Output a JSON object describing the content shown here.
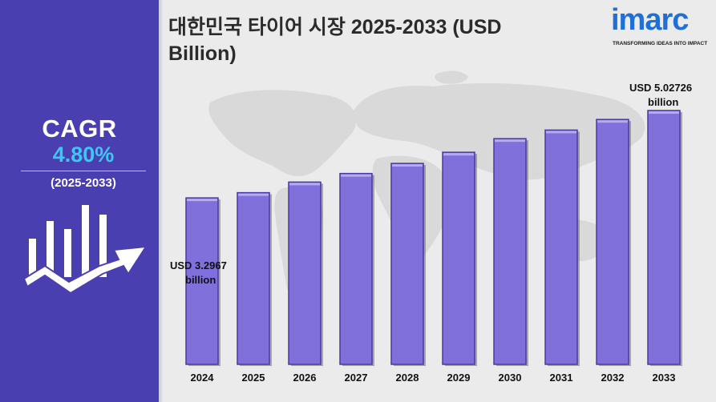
{
  "title": "대한민국 타이어 시장 2025-2033 (USD Billion)",
  "brand": {
    "name": "imarc",
    "tagline": "TRANSFORMING IDEAS INTO IMPACT",
    "color": "#1f6fd6"
  },
  "cagr": {
    "label": "CAGR",
    "value": "4.80%",
    "period": "(2025-2033)"
  },
  "colors": {
    "sidebar": "#4a3fb0",
    "bar_fill": "#7f70dc",
    "bar_edge": "#4b3a9e",
    "cagr_value": "#3fc7f3"
  },
  "callouts": {
    "first": [
      "USD 3.2967",
      "billion"
    ],
    "last": [
      "USD 5.02726",
      "billion"
    ]
  },
  "chart_data": {
    "type": "bar",
    "title": "대한민국 타이어 시장 2025-2033 (USD Billion)",
    "categories": [
      "2024",
      "2025",
      "2026",
      "2027",
      "2028",
      "2029",
      "2030",
      "2031",
      "2032",
      "2033"
    ],
    "values": [
      3.2967,
      3.4,
      3.61,
      3.78,
      3.98,
      4.2,
      4.47,
      4.64,
      4.85,
      5.02726
    ],
    "xlabel": "",
    "ylabel": "",
    "ylim": [
      0,
      5.3
    ],
    "grid": false,
    "legend": "none"
  }
}
